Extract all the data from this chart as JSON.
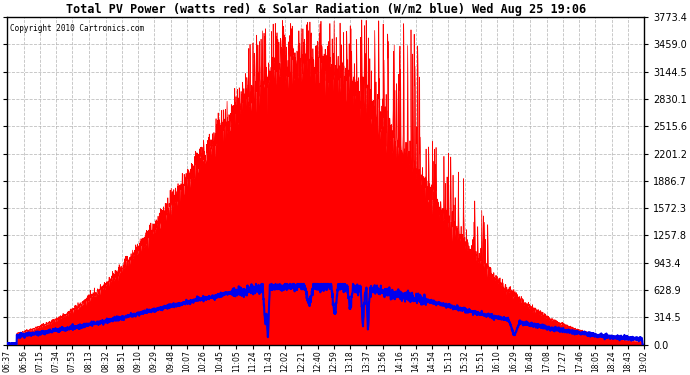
{
  "title": "Total PV Power (watts red) & Solar Radiation (W/m2 blue) Wed Aug 25 19:06",
  "copyright": "Copyright 2010 Cartronics.com",
  "bg_color": "#ffffff",
  "plot_bg_color": "#ffffff",
  "grid_color": "#b0b0b0",
  "red_color": "#ff0000",
  "blue_color": "#0000ee",
  "ymin": 0.0,
  "ymax": 3773.4,
  "yticks": [
    0.0,
    314.5,
    628.9,
    943.4,
    1257.8,
    1572.3,
    1886.7,
    2201.2,
    2515.6,
    2830.1,
    3144.5,
    3459.0,
    3773.4
  ],
  "x_labels": [
    "06:37",
    "06:56",
    "07:15",
    "07:34",
    "07:53",
    "08:13",
    "08:32",
    "08:51",
    "09:10",
    "09:29",
    "09:48",
    "10:07",
    "10:26",
    "10:45",
    "11:05",
    "11:24",
    "11:43",
    "12:02",
    "12:21",
    "12:40",
    "12:59",
    "13:18",
    "13:37",
    "13:56",
    "14:16",
    "14:35",
    "14:54",
    "15:13",
    "15:32",
    "15:51",
    "16:10",
    "16:29",
    "16:48",
    "17:08",
    "17:27",
    "17:46",
    "18:05",
    "18:24",
    "18:43",
    "19:02"
  ]
}
